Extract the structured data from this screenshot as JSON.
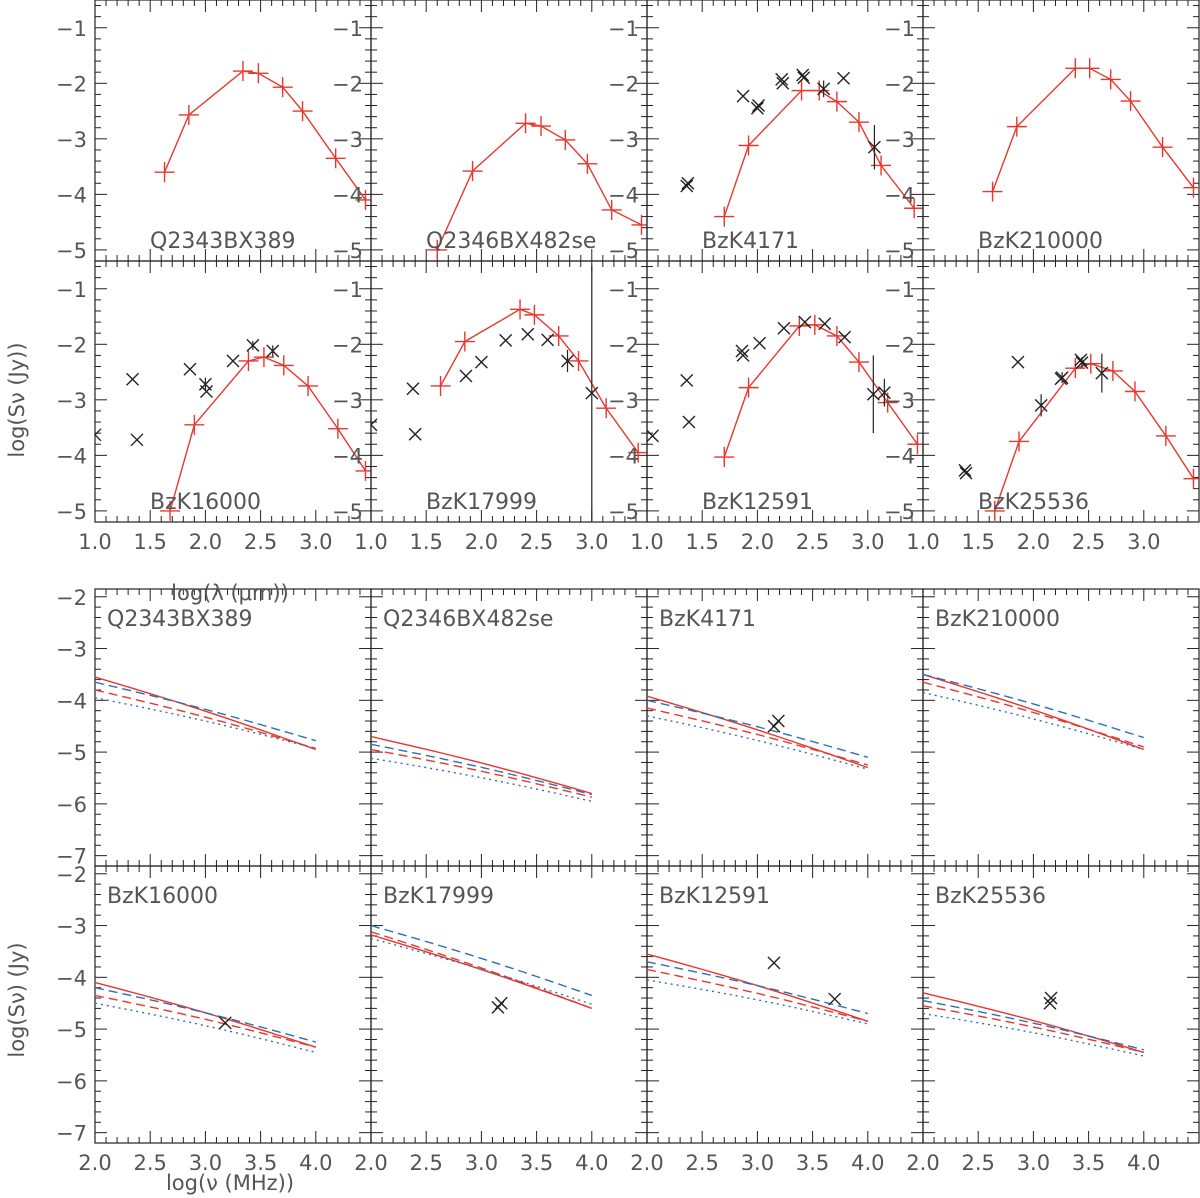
{
  "colors": {
    "model_red": "#e8372e",
    "model_blue": "#2f6fb5",
    "observed": "#222222",
    "frame": "#222222",
    "text": "#555555"
  },
  "chart_data": [
    {
      "type": "scatter",
      "description_of_layout": "grid of 2 rows x 4 columns; far-infrared/submm SEDs",
      "xlabel": "log(λ (μm))",
      "ylabel": "log(Sν (Jy))",
      "xlim": [
        1.0,
        3.5
      ],
      "ylim": [
        -5.2,
        -0.5
      ],
      "x_ticks": [
        1.0,
        1.5,
        2.0,
        2.5,
        3.0
      ],
      "x_tick_labels": [
        "1.0",
        "1.5",
        "2.0",
        "2.5",
        "3.0"
      ],
      "y_ticks": [
        -1,
        -2,
        -3,
        -4,
        -5
      ],
      "y_tick_labels": [
        "−1",
        "−2",
        "−3",
        "−4",
        "−5"
      ],
      "panels": [
        {
          "name": "Q2343BX389",
          "model": {
            "x": [
              1.63,
              1.85,
              2.34,
              2.48,
              2.7,
              2.88,
              3.18,
              3.45
            ],
            "y": [
              -3.6,
              -2.57,
              -1.78,
              -1.82,
              -2.07,
              -2.5,
              -3.35,
              -4.1
            ]
          },
          "observed": []
        },
        {
          "name": "Q2346BX482se",
          "model": {
            "x": [
              1.6,
              1.92,
              2.4,
              2.54,
              2.76,
              2.96,
              3.18,
              3.45
            ],
            "y": [
              -5.0,
              -3.58,
              -2.72,
              -2.77,
              -3.02,
              -3.45,
              -4.28,
              -4.55
            ]
          },
          "observed": []
        },
        {
          "name": "BzK4171",
          "model": {
            "x": [
              1.7,
              1.92,
              2.4,
              2.56,
              2.72,
              2.92,
              3.12,
              3.42
            ],
            "y": [
              -4.4,
              -3.12,
              -2.13,
              -2.13,
              -2.33,
              -2.7,
              -3.48,
              -4.25
            ]
          },
          "observed": [
            {
              "x": 1.36,
              "y": -3.85,
              "err": 0
            },
            {
              "x": 1.37,
              "y": -3.8,
              "err": 0
            },
            {
              "x": 1.87,
              "y": -2.23,
              "err": 0
            },
            {
              "x": 2.0,
              "y": -2.45,
              "err": 0
            },
            {
              "x": 2.01,
              "y": -2.4,
              "err": 0
            },
            {
              "x": 2.22,
              "y": -1.93,
              "err": 0
            },
            {
              "x": 2.23,
              "y": -2.0,
              "err": 0
            },
            {
              "x": 2.41,
              "y": -1.85,
              "err": 0
            },
            {
              "x": 2.42,
              "y": -1.9,
              "err": 0
            },
            {
              "x": 2.6,
              "y": -2.1,
              "err": 0.15
            },
            {
              "x": 2.78,
              "y": -1.91,
              "err": 0
            },
            {
              "x": 3.06,
              "y": -3.15,
              "err": 0.4
            }
          ]
        },
        {
          "name": "BzK210000",
          "model": {
            "x": [
              1.63,
              1.85,
              2.38,
              2.51,
              2.7,
              2.88,
              3.17,
              3.45
            ],
            "y": [
              -3.95,
              -2.78,
              -1.73,
              -1.73,
              -1.93,
              -2.32,
              -3.15,
              -3.88
            ]
          },
          "observed": []
        },
        {
          "name": "BzK16000",
          "model": {
            "x": [
              1.68,
              1.9,
              2.39,
              2.53,
              2.71,
              2.93,
              3.2,
              3.45
            ],
            "y": [
              -5.0,
              -3.45,
              -2.3,
              -2.23,
              -2.38,
              -2.75,
              -3.52,
              -4.28
            ]
          },
          "observed": [
            {
              "x": 1.0,
              "y": -3.63,
              "err": 0
            },
            {
              "x": 1.34,
              "y": -2.63,
              "err": 0
            },
            {
              "x": 1.38,
              "y": -3.72,
              "err": 0
            },
            {
              "x": 1.86,
              "y": -2.45,
              "err": 0
            },
            {
              "x": 2.0,
              "y": -2.72,
              "err": 0.12
            },
            {
              "x": 2.01,
              "y": -2.85,
              "err": 0
            },
            {
              "x": 2.25,
              "y": -2.3,
              "err": 0
            },
            {
              "x": 2.43,
              "y": -2.02,
              "err": 0.08
            },
            {
              "x": 2.61,
              "y": -2.12,
              "err": 0.1
            }
          ]
        },
        {
          "name": "BzK17999",
          "model": {
            "x": [
              1.63,
              1.85,
              2.35,
              2.48,
              2.7,
              2.88,
              3.13,
              3.42
            ],
            "y": [
              -2.75,
              -1.95,
              -1.37,
              -1.47,
              -1.85,
              -2.3,
              -3.15,
              -3.95
            ]
          },
          "observed": [
            {
              "x": 1.0,
              "y": -3.45,
              "err": 0
            },
            {
              "x": 1.38,
              "y": -2.8,
              "err": 0
            },
            {
              "x": 1.4,
              "y": -3.62,
              "err": 0
            },
            {
              "x": 1.86,
              "y": -2.57,
              "err": 0
            },
            {
              "x": 2.0,
              "y": -2.32,
              "err": 0
            },
            {
              "x": 2.22,
              "y": -1.93,
              "err": 0
            },
            {
              "x": 2.42,
              "y": -1.82,
              "err": 0
            },
            {
              "x": 2.6,
              "y": -1.92,
              "err": 0
            },
            {
              "x": 2.78,
              "y": -2.3,
              "err": 0.2
            },
            {
              "x": 3.0,
              "y": -2.88,
              "err": 2.3
            }
          ]
        },
        {
          "name": "BzK12591",
          "model": {
            "x": [
              1.7,
              1.92,
              2.38,
              2.52,
              2.72,
              2.92,
              3.18,
              3.45
            ],
            "y": [
              -4.03,
              -2.78,
              -1.67,
              -1.65,
              -1.85,
              -2.32,
              -3.05,
              -3.8
            ]
          },
          "observed": [
            {
              "x": 1.05,
              "y": -3.65,
              "err": 0
            },
            {
              "x": 1.36,
              "y": -2.65,
              "err": 0
            },
            {
              "x": 1.38,
              "y": -3.4,
              "err": 0
            },
            {
              "x": 1.86,
              "y": -2.12,
              "err": 0
            },
            {
              "x": 1.87,
              "y": -2.2,
              "err": 0
            },
            {
              "x": 2.02,
              "y": -1.98,
              "err": 0
            },
            {
              "x": 2.24,
              "y": -1.71,
              "err": 0
            },
            {
              "x": 2.43,
              "y": -1.6,
              "err": 0
            },
            {
              "x": 2.61,
              "y": -1.63,
              "err": 0
            },
            {
              "x": 2.79,
              "y": -1.87,
              "err": 0
            },
            {
              "x": 3.05,
              "y": -2.9,
              "err": 0.7
            },
            {
              "x": 3.15,
              "y": -2.87,
              "err": 0.25
            }
          ]
        },
        {
          "name": "BzK25536",
          "model": {
            "x": [
              1.65,
              1.87,
              2.38,
              2.52,
              2.72,
              2.92,
              3.2,
              3.45
            ],
            "y": [
              -5.0,
              -3.75,
              -2.43,
              -2.35,
              -2.48,
              -2.85,
              -3.65,
              -4.42
            ]
          },
          "observed": [
            {
              "x": 1.38,
              "y": -4.27,
              "err": 0
            },
            {
              "x": 1.39,
              "y": -4.32,
              "err": 0
            },
            {
              "x": 1.86,
              "y": -2.32,
              "err": 0
            },
            {
              "x": 2.07,
              "y": -3.1,
              "err": 0.2
            },
            {
              "x": 2.25,
              "y": -2.62,
              "err": 0
            },
            {
              "x": 2.26,
              "y": -2.6,
              "err": 0.1
            },
            {
              "x": 2.43,
              "y": -2.28,
              "err": 0
            },
            {
              "x": 2.44,
              "y": -2.33,
              "err": 0.1
            },
            {
              "x": 2.62,
              "y": -2.52,
              "err": 0.35
            }
          ]
        }
      ]
    },
    {
      "type": "line",
      "description_of_layout": "grid of 2 rows x 4 columns; radio SEDs with four model curves",
      "xlabel": "log(ν (MHz))",
      "ylabel": "log(Sν) (Jy)",
      "xlim": [
        2.0,
        4.5
      ],
      "ylim": [
        -7.2,
        -1.85
      ],
      "x_ticks": [
        2.0,
        2.5,
        3.0,
        3.5,
        4.0
      ],
      "x_tick_labels": [
        "2.0",
        "2.5",
        "3.0",
        "3.5",
        "4.0"
      ],
      "y_ticks": [
        -2,
        -3,
        -4,
        -5,
        -6,
        -7
      ],
      "y_tick_labels": [
        "−2",
        "−3",
        "−4",
        "−5",
        "−6",
        "−7"
      ],
      "panels": [
        {
          "name": "Q2343BX389",
          "lines": {
            "red_solid": [
              -3.55,
              -4.95
            ],
            "blue_dashed": [
              -3.65,
              -4.78
            ],
            "red_dashed": [
              -3.8,
              -4.93
            ],
            "blue_dotted": [
              -3.95,
              -4.93
            ]
          },
          "observed": []
        },
        {
          "name": "Q2346BX482se",
          "lines": {
            "red_solid": [
              -4.7,
              -5.8
            ],
            "blue_dashed": [
              -4.85,
              -5.82
            ],
            "red_dashed": [
              -4.95,
              -5.87
            ],
            "blue_dotted": [
              -5.12,
              -5.95
            ]
          },
          "observed": []
        },
        {
          "name": "BzK4171",
          "lines": {
            "red_solid": [
              -3.92,
              -5.3
            ],
            "blue_dashed": [
              -4.0,
              -5.1
            ],
            "red_dashed": [
              -4.15,
              -5.25
            ],
            "blue_dotted": [
              -4.3,
              -5.33
            ]
          },
          "observed": [
            {
              "x": 3.15,
              "y": -4.5
            },
            {
              "x": 3.19,
              "y": -4.4
            }
          ]
        },
        {
          "name": "BzK210000",
          "lines": {
            "red_solid": [
              -3.5,
              -4.95
            ],
            "blue_dashed": [
              -3.5,
              -4.72
            ],
            "red_dashed": [
              -3.65,
              -4.9
            ],
            "blue_dotted": [
              -3.85,
              -4.95
            ]
          },
          "observed": []
        },
        {
          "name": "BzK16000",
          "lines": {
            "red_solid": [
              -4.1,
              -5.35
            ],
            "blue_dashed": [
              -4.2,
              -5.25
            ],
            "red_dashed": [
              -4.35,
              -5.35
            ],
            "blue_dotted": [
              -4.5,
              -5.45
            ]
          },
          "observed": [
            {
              "x": 3.18,
              "y": -4.88
            }
          ]
        },
        {
          "name": "BzK17999",
          "lines": {
            "red_solid": [
              -3.18,
              -4.6
            ],
            "blue_dashed": [
              -3.0,
              -4.35
            ],
            "red_dashed": [
              -3.12,
              -4.6
            ],
            "blue_dotted": [
              -3.25,
              -4.52
            ]
          },
          "observed": [
            {
              "x": 3.15,
              "y": -4.58
            },
            {
              "x": 3.18,
              "y": -4.5
            }
          ]
        },
        {
          "name": "BzK12591",
          "lines": {
            "red_solid": [
              -3.55,
              -4.85
            ],
            "blue_dashed": [
              -3.7,
              -4.7
            ],
            "red_dashed": [
              -3.85,
              -4.85
            ],
            "blue_dotted": [
              -4.05,
              -4.9
            ]
          },
          "observed": [
            {
              "x": 3.15,
              "y": -3.72
            },
            {
              "x": 3.7,
              "y": -4.42
            }
          ]
        },
        {
          "name": "BzK25536",
          "lines": {
            "red_solid": [
              -4.3,
              -5.45
            ],
            "blue_dashed": [
              -4.45,
              -5.4
            ],
            "red_dashed": [
              -4.55,
              -5.45
            ],
            "blue_dotted": [
              -4.7,
              -5.52
            ]
          },
          "observed": [
            {
              "x": 3.15,
              "y": -4.5
            },
            {
              "x": 3.16,
              "y": -4.4
            }
          ]
        }
      ]
    }
  ]
}
